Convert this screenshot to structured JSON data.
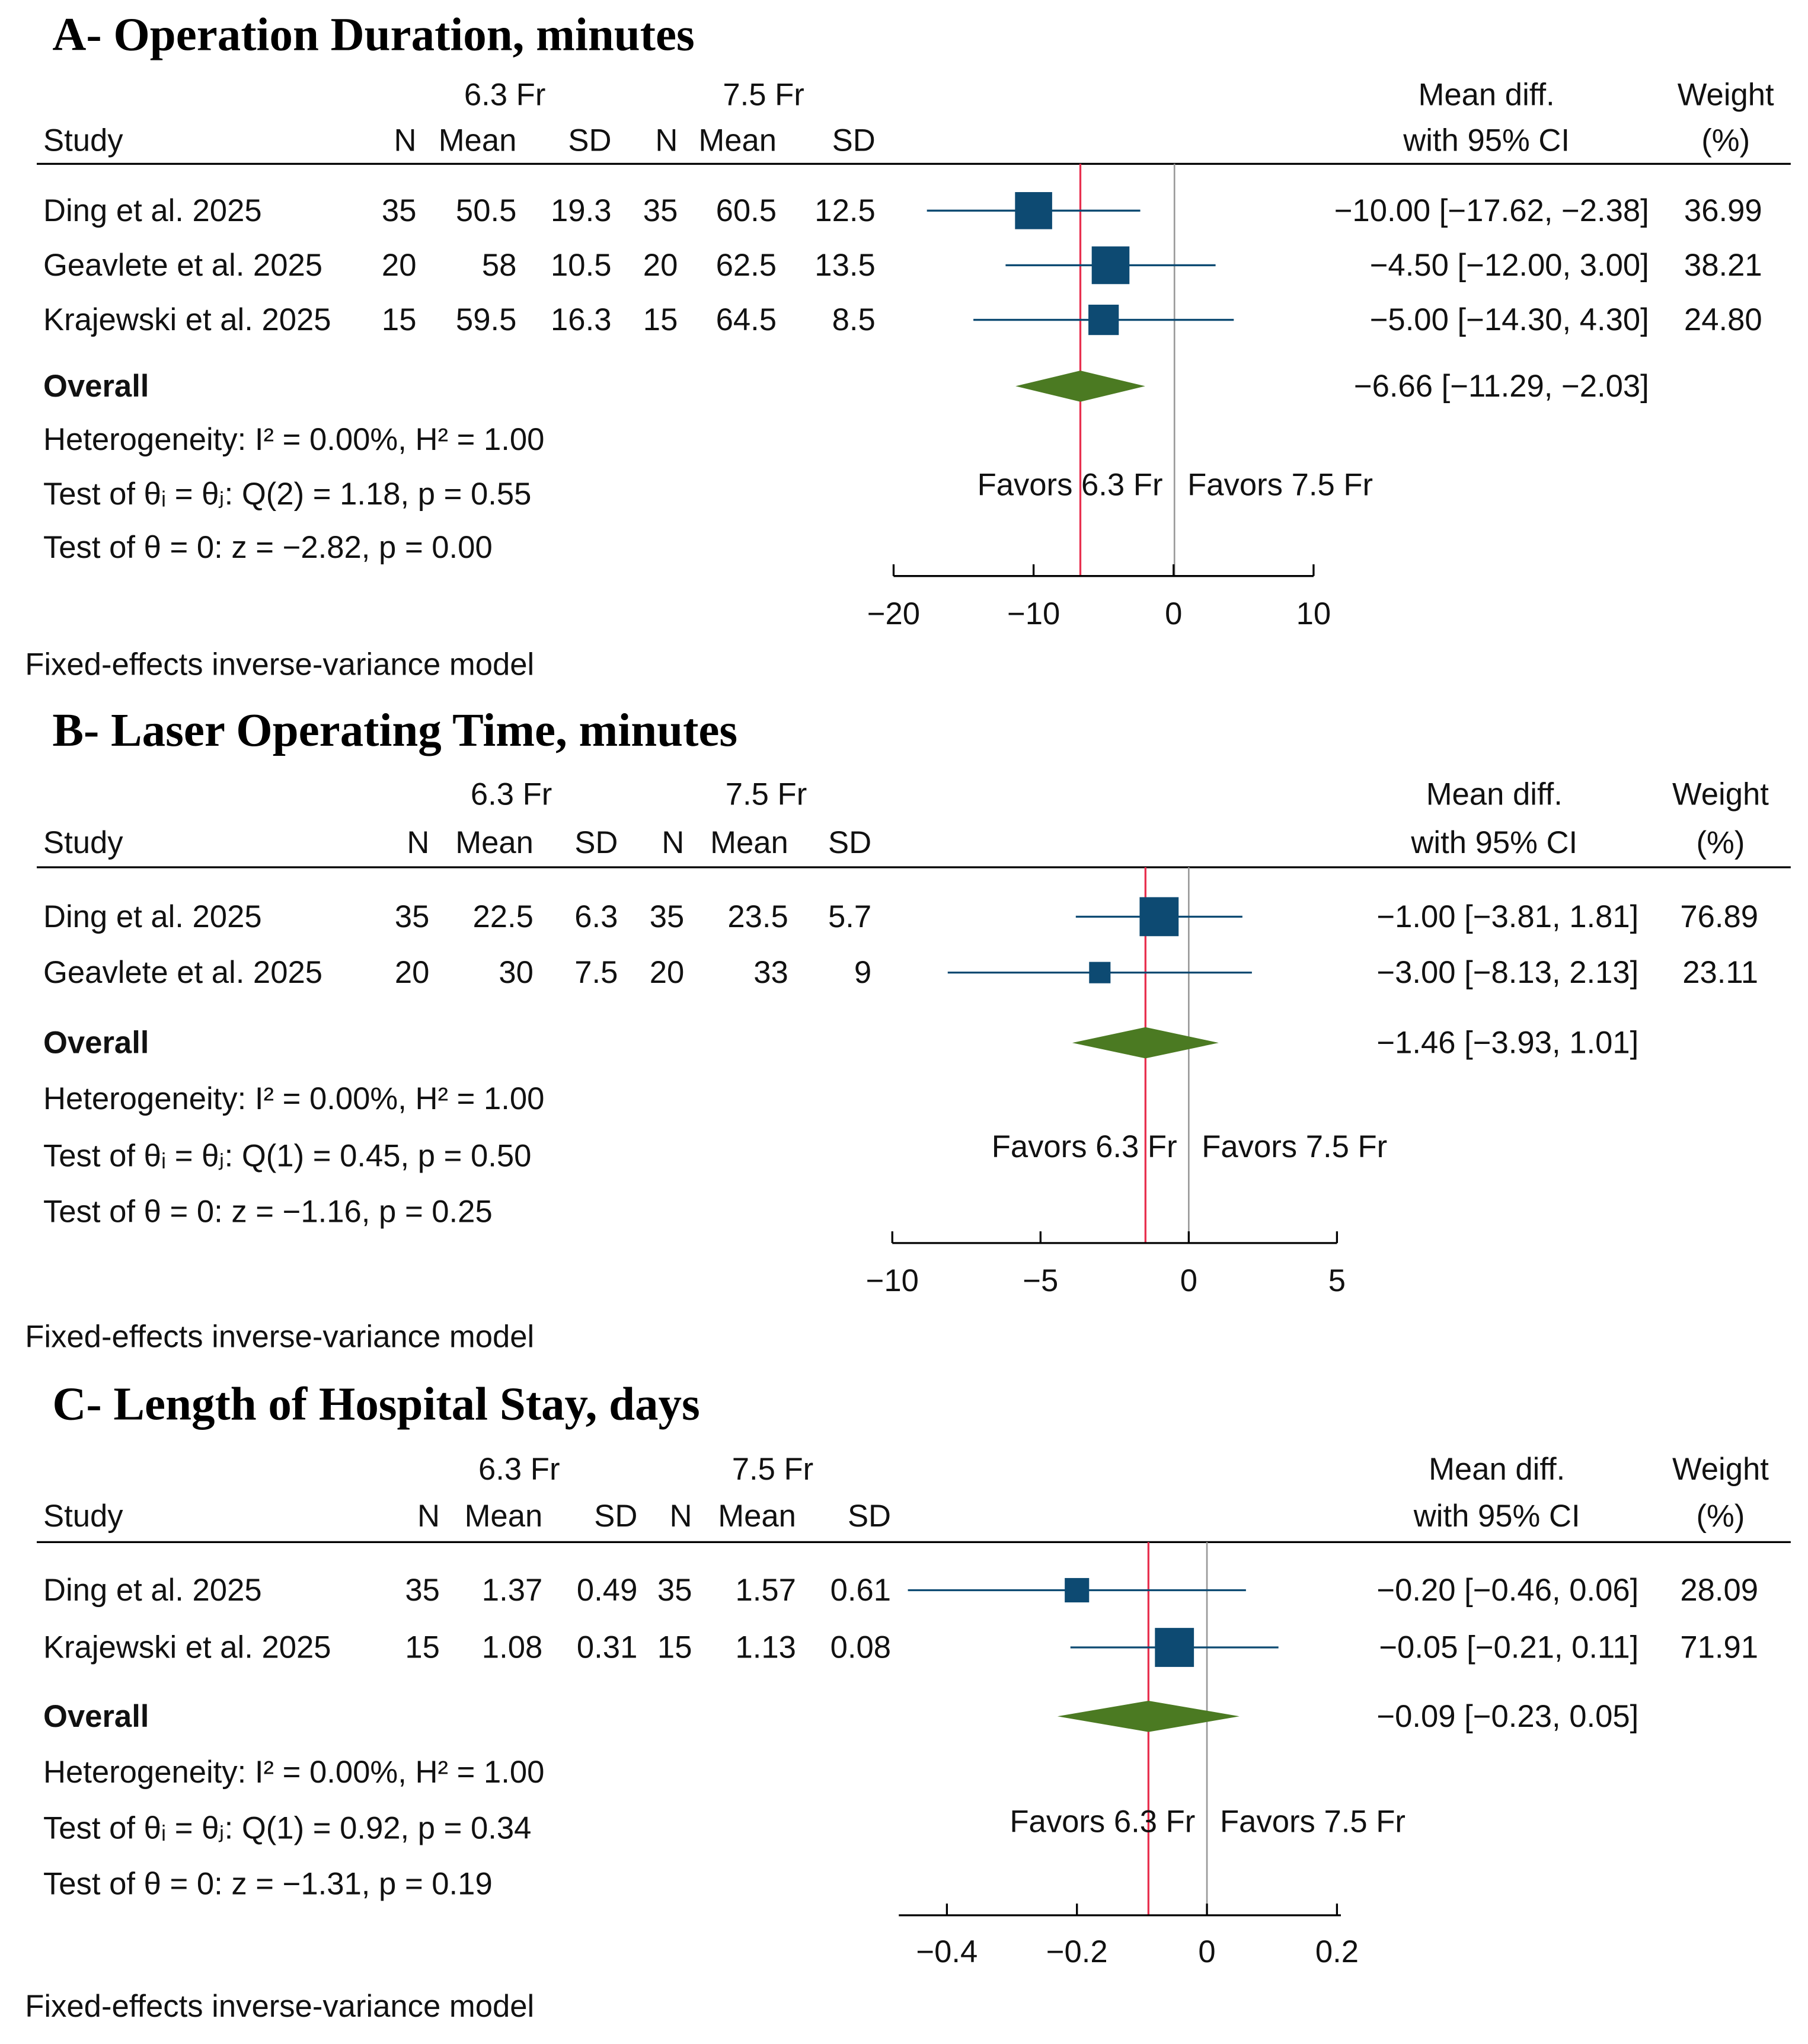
{
  "colors": {
    "marker": "#0d4a72",
    "ci_line": "#0d4a72",
    "diamond": "#4b7a22",
    "overall_line": "#e8304f",
    "null_line": "#999999",
    "text": "#111111"
  },
  "chart_data": [
    {
      "type": "forest",
      "title": "A- Operation Duration, minutes",
      "headers": {
        "group1": "6.3 Fr",
        "group2": "7.5 Fr",
        "study": "Study",
        "n": "N",
        "mean": "Mean",
        "sd": "SD",
        "md1": "Mean diff.",
        "md2": "with 95% CI",
        "w1": "Weight",
        "w2": "(%)"
      },
      "studies": [
        {
          "name": "Ding et al. 2025",
          "n1": "35",
          "mean1": "50.5",
          "sd1": "19.3",
          "n2": "35",
          "mean2": "60.5",
          "sd2": "12.5",
          "md": -10.0,
          "lo": -17.62,
          "hi": -2.38,
          "weight": 36.99,
          "ci_text": "−10.00 [−17.62, −2.38]",
          "weight_text": "36.99"
        },
        {
          "name": "Geavlete et al. 2025",
          "n1": "20",
          "mean1": "58",
          "sd1": "10.5",
          "n2": "20",
          "mean2": "62.5",
          "sd2": "13.5",
          "md": -4.5,
          "lo": -12.0,
          "hi": 3.0,
          "weight": 38.21,
          "ci_text": "−4.50 [−12.00,  3.00]",
          "weight_text": "38.21"
        },
        {
          "name": "Krajewski et al. 2025",
          "n1": "15",
          "mean1": "59.5",
          "sd1": "16.3",
          "n2": "15",
          "mean2": "64.5",
          "sd2": "8.5",
          "md": -5.0,
          "lo": -14.3,
          "hi": 4.3,
          "weight": 24.8,
          "ci_text": "−5.00 [−14.30,  4.30]",
          "weight_text": "24.80"
        }
      ],
      "overall": {
        "label": "Overall",
        "md": -6.66,
        "lo": -11.29,
        "hi": -2.03,
        "ci_text": "−6.66 [−11.29, −2.03]"
      },
      "stats": [
        "Heterogeneity: I² = 0.00%, H² = 1.00",
        "Test of θᵢ = θⱼ: Q(2) = 1.18, p = 0.55",
        "Test of θ = 0: z = −2.82, p = 0.00"
      ],
      "favors_left": "Favors 6.3 Fr",
      "favors_right": "Favors 7.5 Fr",
      "ticks": [
        -20,
        -10,
        0,
        10
      ],
      "tick_labels": [
        "−20",
        "−10",
        "0",
        "10"
      ],
      "xlim": [
        -20,
        10
      ],
      "footer": "Fixed-effects inverse-variance model"
    },
    {
      "type": "forest",
      "title": "B- Laser Operating Time, minutes",
      "headers": {
        "group1": "6.3 Fr",
        "group2": "7.5 Fr",
        "study": "Study",
        "n": "N",
        "mean": "Mean",
        "sd": "SD",
        "md1": "Mean diff.",
        "md2": "with 95% CI",
        "w1": "Weight",
        "w2": "(%)"
      },
      "studies": [
        {
          "name": "Ding et al. 2025",
          "n1": "35",
          "mean1": "22.5",
          "sd1": "6.3",
          "n2": "35",
          "mean2": "23.5",
          "sd2": "5.7",
          "md": -1.0,
          "lo": -3.81,
          "hi": 1.81,
          "weight": 76.89,
          "ci_text": "−1.00 [−3.81,  1.81]",
          "weight_text": "76.89"
        },
        {
          "name": "Geavlete et al. 2025",
          "n1": "20",
          "mean1": "30",
          "sd1": "7.5",
          "n2": "20",
          "mean2": "33",
          "sd2": "9",
          "md": -3.0,
          "lo": -8.13,
          "hi": 2.13,
          "weight": 23.11,
          "ci_text": "−3.00 [−8.13,  2.13]",
          "weight_text": "23.11"
        }
      ],
      "overall": {
        "label": "Overall",
        "md": -1.46,
        "lo": -3.93,
        "hi": 1.01,
        "ci_text": "−1.46 [−3.93,  1.01]"
      },
      "stats": [
        "Heterogeneity: I² = 0.00%, H² = 1.00",
        "Test of θᵢ = θⱼ: Q(1) = 0.45, p = 0.50",
        "Test of θ = 0: z = −1.16, p = 0.25"
      ],
      "favors_left": "Favors 6.3 Fr",
      "favors_right": "Favors 7.5 Fr",
      "ticks": [
        -10,
        -5,
        0,
        5
      ],
      "tick_labels": [
        "−10",
        "−5",
        "0",
        "5"
      ],
      "xlim": [
        -10,
        5
      ],
      "footer": "Fixed-effects inverse-variance model"
    },
    {
      "type": "forest",
      "title": "C- Length of Hospital Stay, days",
      "headers": {
        "group1": "6.3 Fr",
        "group2": "7.5 Fr",
        "study": "Study",
        "n": "N",
        "mean": "Mean",
        "sd": "SD",
        "md1": "Mean diff.",
        "md2": "with 95% CI",
        "w1": "Weight",
        "w2": "(%)"
      },
      "studies": [
        {
          "name": "Ding et al. 2025",
          "n1": "35",
          "mean1": "1.37",
          "sd1": "0.49",
          "n2": "35",
          "mean2": "1.57",
          "sd2": "0.61",
          "md": -0.2,
          "lo": -0.46,
          "hi": 0.06,
          "weight": 28.09,
          "ci_text": "−0.20 [−0.46,  0.06]",
          "weight_text": "28.09"
        },
        {
          "name": "Krajewski et al. 2025",
          "n1": "15",
          "mean1": "1.08",
          "sd1": "0.31",
          "n2": "15",
          "mean2": "1.13",
          "sd2": "0.08",
          "md": -0.05,
          "lo": -0.21,
          "hi": 0.11,
          "weight": 71.91,
          "ci_text": "−0.05 [−0.21,  0.11]",
          "weight_text": "71.91"
        }
      ],
      "overall": {
        "label": "Overall",
        "md": -0.09,
        "lo": -0.23,
        "hi": 0.05,
        "ci_text": "−0.09 [−0.23,  0.05]"
      },
      "stats": [
        "Heterogeneity: I² = 0.00%, H² = 1.00",
        "Test of θᵢ = θⱼ: Q(1) = 0.92, p = 0.34",
        "Test of θ = 0: z = −1.31, p = 0.19"
      ],
      "favors_left": "Favors 6.3 Fr",
      "favors_right": "Favors 7.5 Fr",
      "ticks": [
        -0.4,
        -0.2,
        0,
        0.2
      ],
      "tick_labels": [
        "−0.4",
        "−0.2",
        "0",
        "0.2"
      ],
      "xlim": [
        -0.474,
        0.206
      ],
      "footer": "Fixed-effects inverse-variance model"
    }
  ]
}
